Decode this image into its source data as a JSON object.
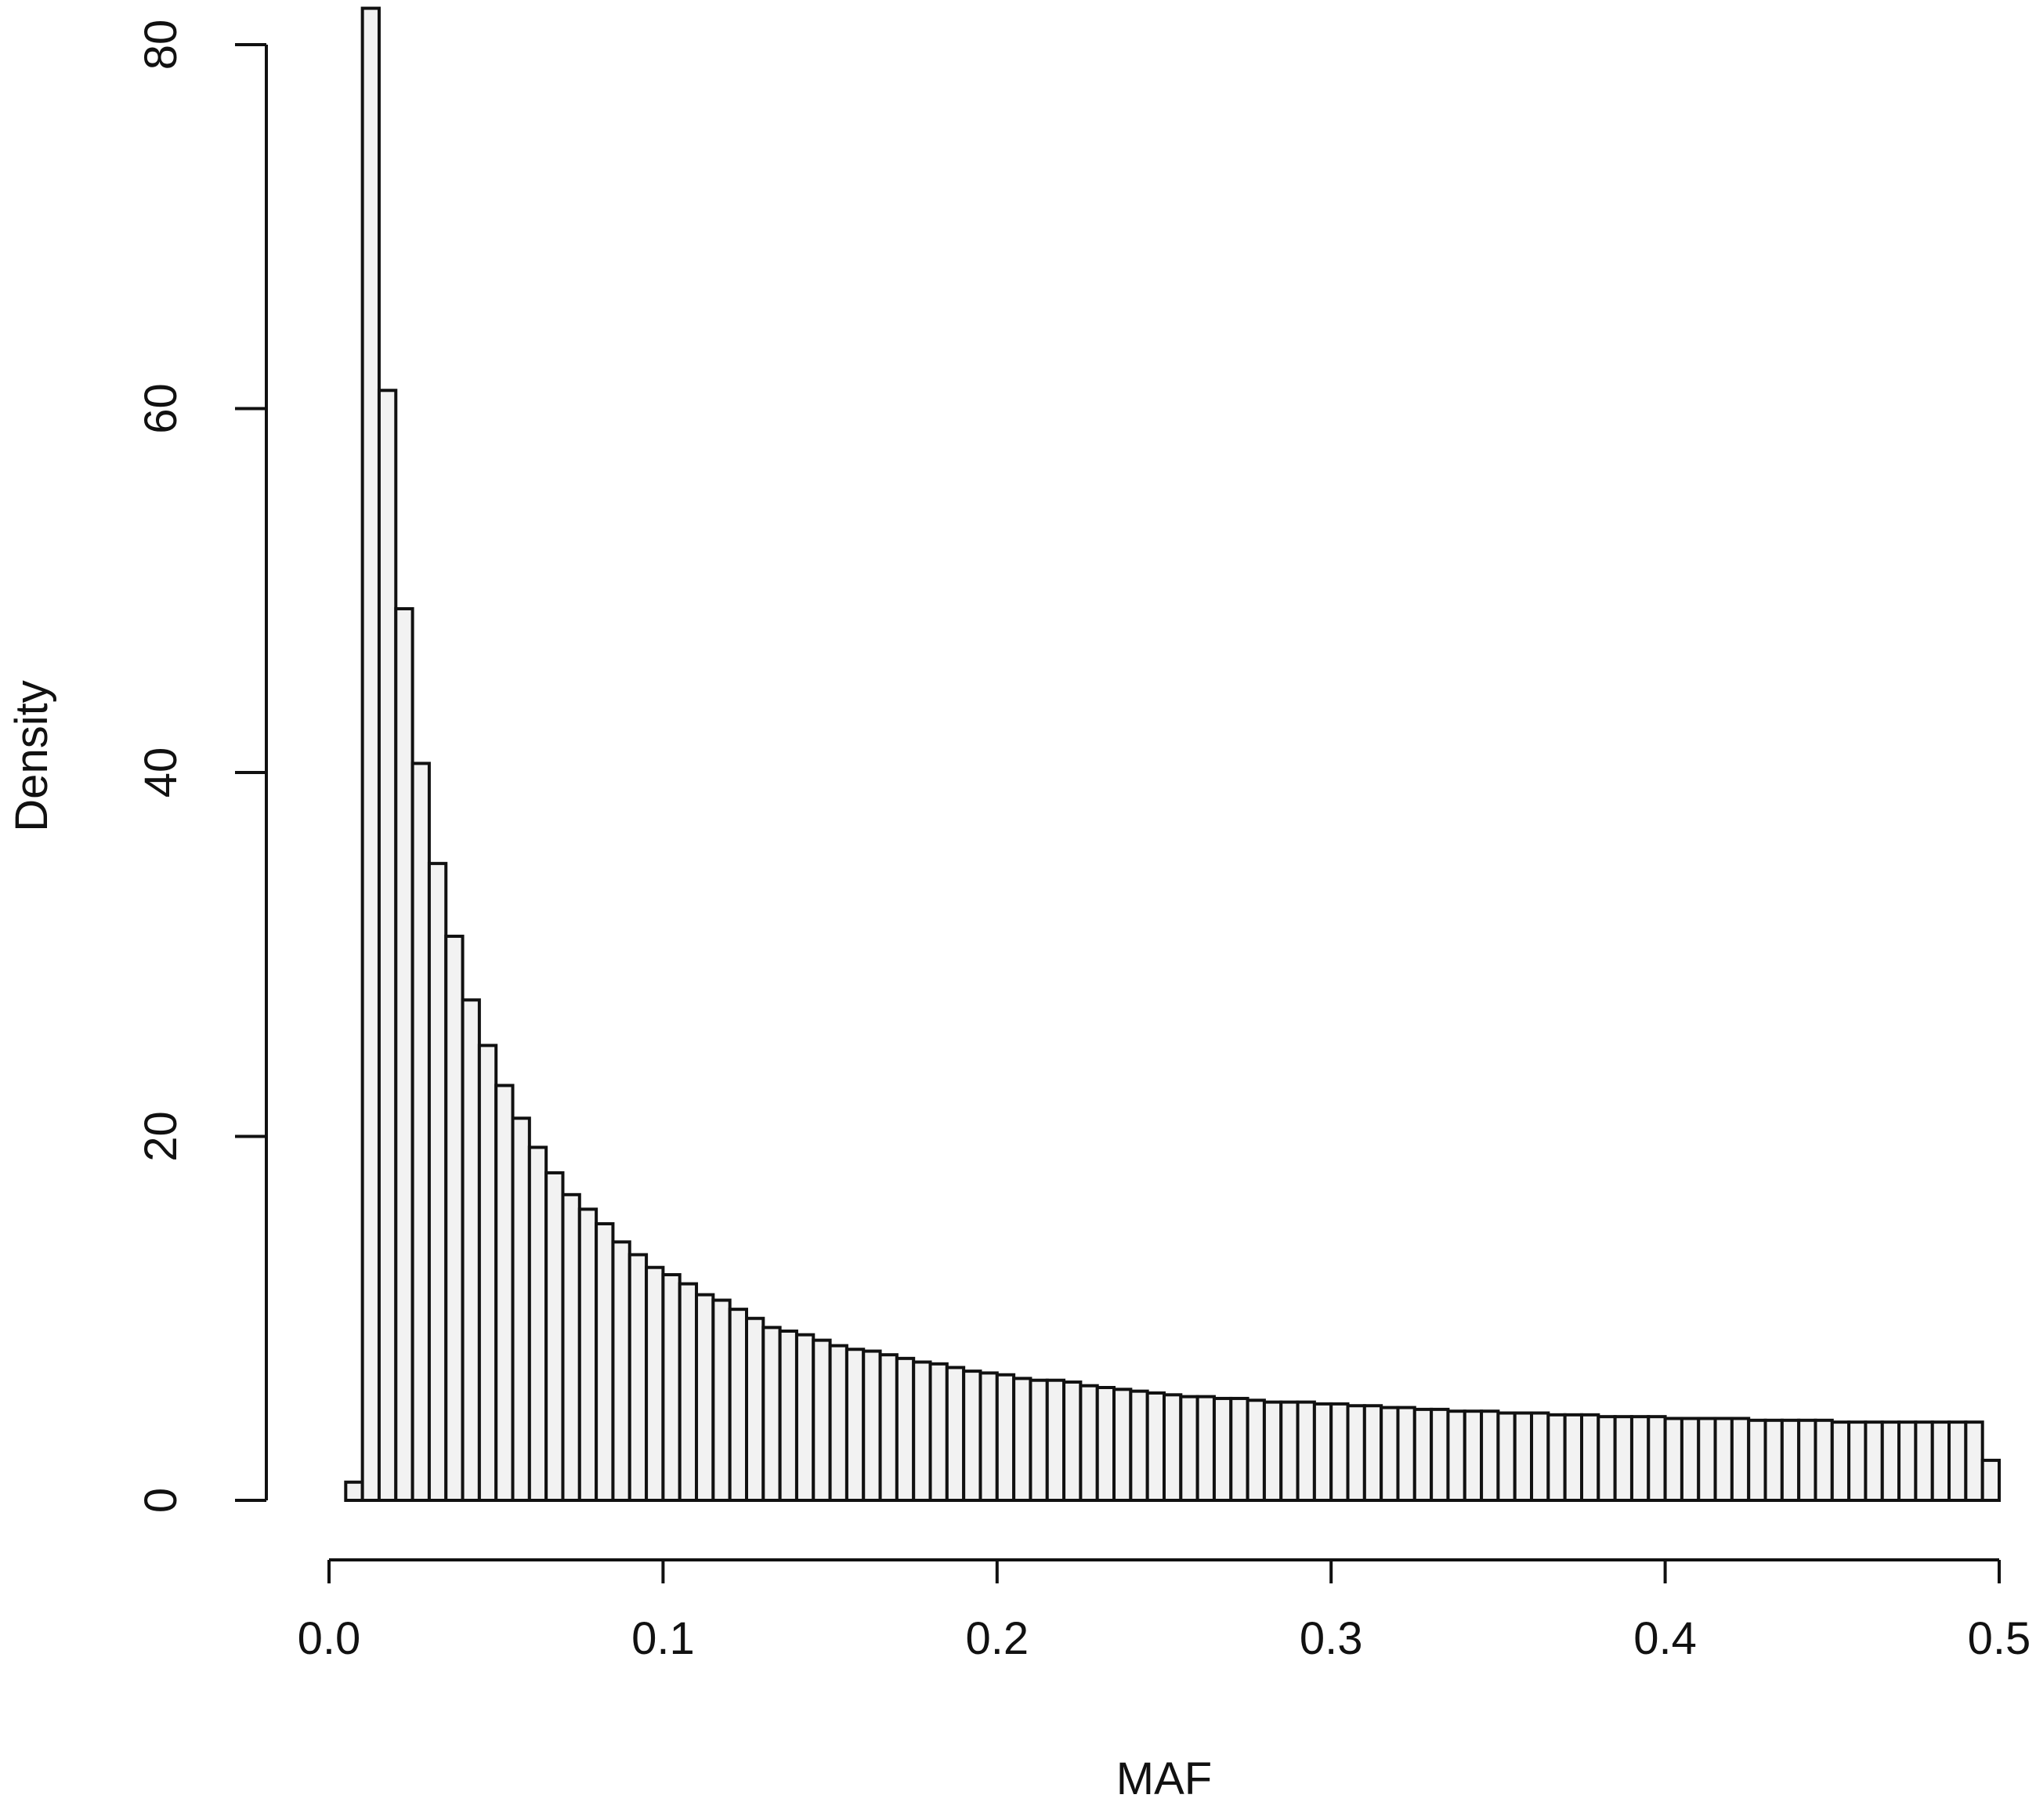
{
  "chart_data": {
    "type": "bar",
    "title": "",
    "xlabel": "MAF",
    "ylabel": "Density",
    "xlim": [
      0.0,
      0.5
    ],
    "ylim": [
      0,
      80
    ],
    "x_ticks": [
      "0.0",
      "0.1",
      "0.2",
      "0.3",
      "0.4",
      "0.5"
    ],
    "y_ticks": [
      "0",
      "20",
      "40",
      "60",
      "80"
    ],
    "grid": false,
    "legend": "none",
    "bar_color": "#111111",
    "bin_width": 0.005,
    "bin_starts": [
      0.0,
      0.005,
      0.01,
      0.015,
      0.02,
      0.025,
      0.03,
      0.035,
      0.04,
      0.045,
      0.05,
      0.055,
      0.06,
      0.065,
      0.07,
      0.075,
      0.08,
      0.085,
      0.09,
      0.095,
      0.1,
      0.105,
      0.11,
      0.115,
      0.12,
      0.125,
      0.13,
      0.135,
      0.14,
      0.145,
      0.15,
      0.155,
      0.16,
      0.165,
      0.17,
      0.175,
      0.18,
      0.185,
      0.19,
      0.195,
      0.2,
      0.205,
      0.21,
      0.215,
      0.22,
      0.225,
      0.23,
      0.235,
      0.24,
      0.245,
      0.25,
      0.255,
      0.26,
      0.265,
      0.27,
      0.275,
      0.28,
      0.285,
      0.29,
      0.295,
      0.3,
      0.305,
      0.31,
      0.315,
      0.32,
      0.325,
      0.33,
      0.335,
      0.34,
      0.345,
      0.35,
      0.355,
      0.36,
      0.365,
      0.37,
      0.375,
      0.38,
      0.385,
      0.39,
      0.395,
      0.4,
      0.405,
      0.41,
      0.415,
      0.42,
      0.425,
      0.43,
      0.435,
      0.44,
      0.445,
      0.45,
      0.455,
      0.46,
      0.465,
      0.47,
      0.475,
      0.48,
      0.485,
      0.49,
      0.495
    ],
    "values": [
      0,
      1,
      82,
      61,
      49,
      40.5,
      35,
      31,
      27.5,
      25,
      22.8,
      21,
      19.4,
      18,
      16.8,
      16,
      15.2,
      14.2,
      13.5,
      12.8,
      12.4,
      11.9,
      11.3,
      11,
      10.5,
      10,
      9.5,
      9.3,
      9.1,
      8.8,
      8.5,
      8.3,
      8.2,
      8,
      7.8,
      7.6,
      7.5,
      7.3,
      7.1,
      7,
      6.9,
      6.7,
      6.6,
      6.6,
      6.5,
      6.3,
      6.2,
      6.1,
      6,
      5.9,
      5.8,
      5.7,
      5.7,
      5.6,
      5.6,
      5.5,
      5.4,
      5.4,
      5.4,
      5.3,
      5.3,
      5.2,
      5.2,
      5.1,
      5.1,
      5,
      5,
      4.9,
      4.9,
      4.9,
      4.8,
      4.8,
      4.8,
      4.7,
      4.7,
      4.7,
      4.6,
      4.6,
      4.6,
      4.6,
      4.5,
      4.5,
      4.5,
      4.5,
      4.5,
      4.4,
      4.4,
      4.4,
      4.4,
      4.4,
      4.3,
      4.3,
      4.3,
      4.3,
      4.3,
      4.3,
      4.3,
      4.3,
      4.3,
      2.2
    ]
  }
}
